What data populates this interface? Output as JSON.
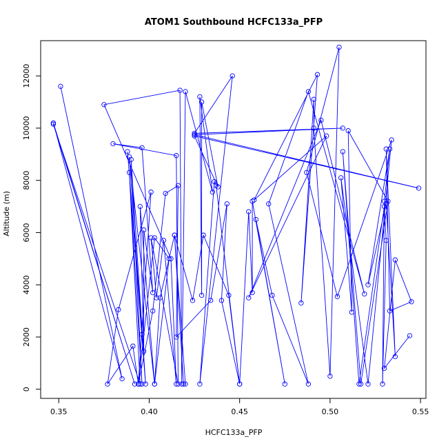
{
  "chart_data": {
    "type": "line",
    "title": "ATOM1 Southbound HCFC133a_PFP",
    "xlabel": "HCFC133a_PFP",
    "ylabel": "Altitude (m)",
    "xlim": [
      0.34,
      0.553
    ],
    "ylim": [
      -350,
      13350
    ],
    "x_ticks": [
      0.35,
      0.4,
      0.45,
      0.5,
      0.55
    ],
    "x_tick_labels": [
      "0.35",
      "0.40",
      "0.45",
      "0.50",
      "0.55"
    ],
    "y_ticks": [
      0,
      2000,
      4000,
      6000,
      8000,
      10000,
      12000
    ],
    "y_tick_labels": [
      "0",
      "2000",
      "4000",
      "6000",
      "8000",
      "10000",
      "12000"
    ],
    "grid": false,
    "markers": "open-circle",
    "color": "#0000ff",
    "series": [
      {
        "points": [
          [
            0.351,
            11600
          ],
          [
            0.385,
            400
          ],
          [
            0.347,
            10200
          ],
          [
            0.392,
            200
          ],
          [
            0.347,
            10150
          ],
          [
            0.395,
            200
          ],
          [
            0.389,
            8300
          ],
          [
            0.396,
            200
          ],
          [
            0.39,
            8800
          ],
          [
            0.398,
            200
          ],
          [
            0.388,
            9100
          ],
          [
            0.396,
            2100
          ],
          [
            0.389,
            8900
          ],
          [
            0.403,
            200
          ],
          [
            0.395,
            7000
          ],
          [
            0.397,
            1450
          ],
          [
            0.397,
            6100
          ],
          [
            0.402,
            3700
          ],
          [
            0.396,
            9250
          ],
          [
            0.38,
            9400
          ],
          [
            0.415,
            8950
          ],
          [
            0.416,
            200
          ],
          [
            0.401,
            5800
          ],
          [
            0.404,
            3500
          ],
          [
            0.408,
            5700
          ],
          [
            0.415,
            200
          ],
          [
            0.412,
            5000
          ],
          [
            0.375,
            10900
          ],
          [
            0.417,
            11450
          ],
          [
            0.418,
            200
          ],
          [
            0.42,
            11400
          ],
          [
            0.435,
            7550
          ],
          [
            0.428,
            11200
          ],
          [
            0.429,
            3600
          ],
          [
            0.429,
            11000
          ],
          [
            0.438,
            7750
          ],
          [
            0.425,
            9700
          ],
          [
            0.549,
            7700
          ],
          [
            0.425,
            9750
          ],
          [
            0.507,
            10000
          ],
          [
            0.425,
            9800
          ],
          [
            0.446,
            12000
          ],
          [
            0.428,
            200
          ],
          [
            0.436,
            7950
          ],
          [
            0.437,
            7800
          ],
          [
            0.45,
            200
          ],
          [
            0.44,
            3400
          ],
          [
            0.443,
            7100
          ],
          [
            0.434,
            3400
          ],
          [
            0.415,
            2000
          ],
          [
            0.416,
            7800
          ],
          [
            0.409,
            7500
          ],
          [
            0.402,
            3000
          ],
          [
            0.394,
            200
          ],
          [
            0.401,
            7550
          ],
          [
            0.383,
            3050
          ],
          [
            0.377,
            200
          ],
          [
            0.391,
            1650
          ],
          [
            0.394,
            200
          ],
          [
            0.403,
            5800
          ],
          [
            0.411,
            5000
          ],
          [
            0.403,
            200
          ],
          [
            0.406,
            3500
          ],
          [
            0.414,
            5900
          ],
          [
            0.419,
            200
          ],
          [
            0.42,
            200
          ],
          [
            0.414,
            5900
          ],
          [
            0.424,
            3400
          ],
          [
            0.43,
            5900
          ],
          [
            0.444,
            3600
          ],
          [
            0.45,
            200
          ],
          [
            0.455,
            6800
          ],
          [
            0.457,
            3700
          ],
          [
            0.457,
            7200
          ],
          [
            0.475,
            200
          ],
          [
            0.459,
            6500
          ],
          [
            0.468,
            3600
          ],
          [
            0.488,
            200
          ],
          [
            0.466,
            7100
          ],
          [
            0.488,
            11400
          ],
          [
            0.519,
            3650
          ],
          [
            0.495,
            10300
          ],
          [
            0.455,
            3500
          ],
          [
            0.498,
            9700
          ],
          [
            0.458,
            7250
          ],
          [
            0.493,
            12050
          ],
          [
            0.484,
            3300
          ],
          [
            0.491,
            11100
          ],
          [
            0.491,
            10000
          ],
          [
            0.5,
            500
          ],
          [
            0.505,
            13100
          ],
          [
            0.487,
            8300
          ],
          [
            0.504,
            3550
          ],
          [
            0.534,
            9550
          ],
          [
            0.521,
            200
          ],
          [
            0.506,
            8100
          ],
          [
            0.512,
            2950
          ],
          [
            0.51,
            9900
          ],
          [
            0.532,
            7200
          ],
          [
            0.517,
            200
          ],
          [
            0.507,
            9100
          ],
          [
            0.516,
            200
          ],
          [
            0.53,
            7000
          ],
          [
            0.531,
            5700
          ],
          [
            0.529,
            200
          ],
          [
            0.53,
            7200
          ],
          [
            0.533,
            9200
          ],
          [
            0.521,
            4000
          ],
          [
            0.531,
            7100
          ],
          [
            0.536,
            1250
          ],
          [
            0.531,
            9200
          ],
          [
            0.533,
            3000
          ],
          [
            0.545,
            3350
          ],
          [
            0.536,
            4950
          ],
          [
            0.53,
            800
          ],
          [
            0.544,
            2050
          ]
        ]
      }
    ]
  }
}
